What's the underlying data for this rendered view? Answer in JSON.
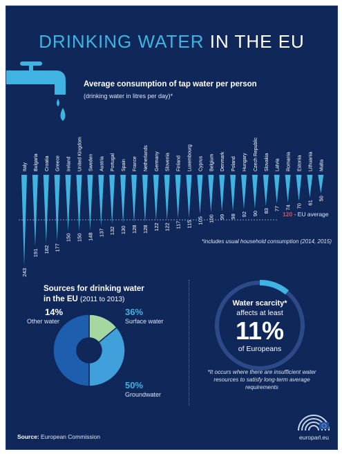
{
  "title": {
    "part1": "DRINKING WATER",
    "part2": "IN THE EU"
  },
  "chart": {
    "title": "Average consumption of tap water per person",
    "subtitle": "(drinking water in litres per day)*",
    "eu_average_value": "120",
    "eu_average_label": "- EU average",
    "footnote": "*includes usual household consumption (2014, 2015)"
  },
  "chart_data": [
    {
      "type": "bar",
      "title": "Average consumption of tap water per person",
      "subtitle": "(drinking water in litres per day)*",
      "categories": [
        "Italy",
        "Bulgaria",
        "Croatia",
        "Greece",
        "Ireland",
        "United Kingdom",
        "Sweden",
        "Austria",
        "Portugal",
        "Spain",
        "France",
        "Netherlands",
        "Germany",
        "Slovenia",
        "Finland",
        "Luxembourg",
        "Cyprus",
        "Belgium",
        "Denmark",
        "Poland",
        "Hungary",
        "Czech Republic",
        "Slovakia",
        "Latvia",
        "Romania",
        "Estonia",
        "Lithuania",
        "Malta"
      ],
      "values": [
        243,
        191,
        182,
        177,
        150,
        150,
        148,
        137,
        132,
        130,
        128,
        128,
        122,
        122,
        117,
        115,
        105,
        100,
        99,
        98,
        92,
        90,
        83,
        77,
        74,
        70,
        61,
        50
      ],
      "reference_line": {
        "value": 120,
        "label": "EU average"
      },
      "legend": "none"
    },
    {
      "type": "pie",
      "title": "Sources for drinking water in the EU (2011 to 2013)",
      "categories": [
        "Other water",
        "Surface water",
        "Groundwater"
      ],
      "values": [
        14,
        36,
        50
      ],
      "colors": [
        "#a7d7a0",
        "#3fa0dc",
        "#1d5fae"
      ]
    }
  ],
  "sources": {
    "title": "Sources for drinking water",
    "title_line2": "in the EU",
    "period": "(2011 to 2013)",
    "other_pct": "14%",
    "other_label": "Other water",
    "surface_pct": "36%",
    "surface_label": "Surface water",
    "ground_pct": "50%",
    "ground_label": "Groundwater"
  },
  "scarcity": {
    "title": "Water scarcity*",
    "line2": "affects at least",
    "big": "11%",
    "line3": "of Europeans",
    "value": 11,
    "footnote": "*It occurs where there are insufficient water resources to satisfy long-term average requirements"
  },
  "footer": {
    "source_label": "Source:",
    "source_text": "European Commission",
    "site": "europarl.eu"
  },
  "colors": {
    "background": "#10275a",
    "accent": "#3fb4e2",
    "eu_average": "#e8494c"
  }
}
